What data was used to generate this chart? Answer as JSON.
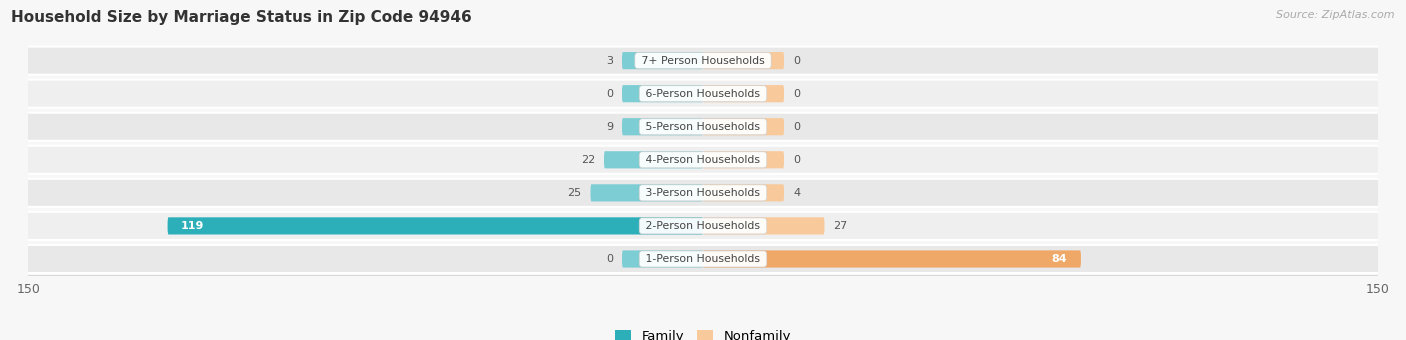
{
  "title": "Household Size by Marriage Status in Zip Code 94946",
  "source": "Source: ZipAtlas.com",
  "categories": [
    "7+ Person Households",
    "6-Person Households",
    "5-Person Households",
    "4-Person Households",
    "3-Person Households",
    "2-Person Households",
    "1-Person Households"
  ],
  "family_values": [
    3,
    0,
    9,
    22,
    25,
    119,
    0
  ],
  "nonfamily_values": [
    0,
    0,
    0,
    0,
    4,
    27,
    84
  ],
  "family_color_light": "#7DCDD4",
  "family_color_dark": "#2DAFBA",
  "nonfamily_color_light": "#F8C99A",
  "nonfamily_color_dark": "#F0A868",
  "xlim": 150,
  "bar_height": 0.52,
  "ghost_bar_size": 18,
  "row_bg": "#e4e4e4",
  "row_bg_stripe": "#ebebeb",
  "legend_family": "Family",
  "legend_nonfamily": "Nonfamily"
}
